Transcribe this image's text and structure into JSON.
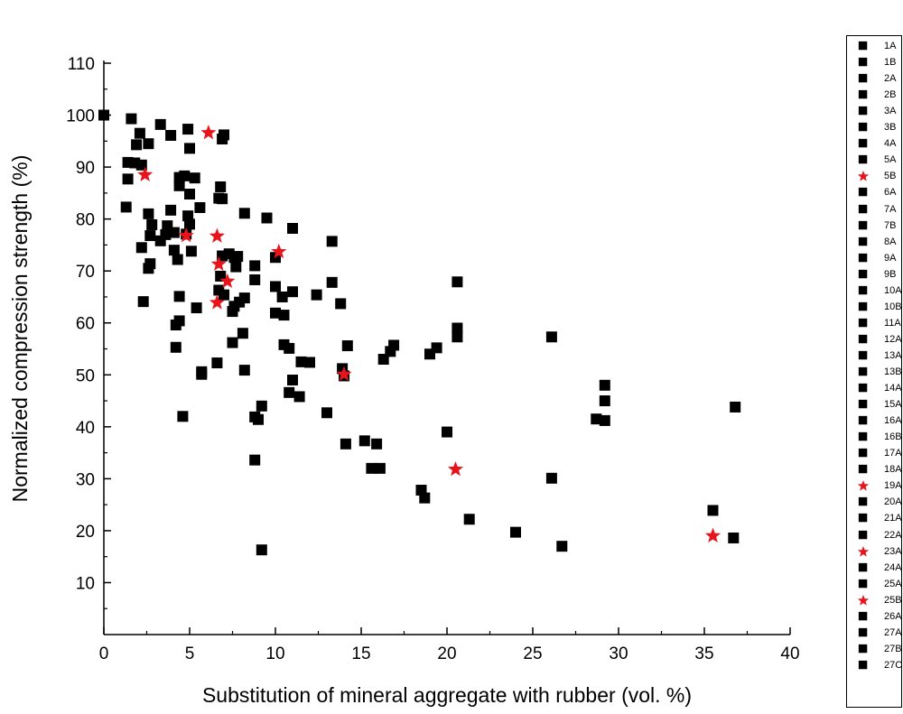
{
  "chart_data": {
    "type": "scatter",
    "title": "",
    "xlabel": "Substitution of mineral aggregate with rubber (vol. %)",
    "ylabel": "Normalized compression strength (%)",
    "xlim": [
      0,
      40
    ],
    "ylim": [
      0,
      110
    ],
    "xticks": [
      0,
      5,
      10,
      15,
      20,
      25,
      30,
      35,
      40
    ],
    "yticks": [
      10,
      20,
      30,
      40,
      50,
      60,
      70,
      80,
      90,
      100,
      110
    ],
    "xtick_labels": [
      "0",
      "5",
      "10",
      "15",
      "20",
      "25",
      "30",
      "35",
      "40"
    ],
    "ytick_labels": [
      "10",
      "20",
      "30",
      "40",
      "50",
      "60",
      "70",
      "80",
      "90",
      "100",
      "110"
    ],
    "grid": false,
    "legend_position": "right",
    "colors": {
      "square": "#000000",
      "star": "#e8141b"
    },
    "series": [
      {
        "marker": "square",
        "points": [
          [
            0.0,
            100
          ],
          [
            1.6,
            99.3
          ],
          [
            3.3,
            98.2
          ],
          [
            4.9,
            97.3
          ],
          [
            2.1,
            96.5
          ],
          [
            3.9,
            96.1
          ],
          [
            7.0,
            96.2
          ],
          [
            6.9,
            95.4
          ],
          [
            2.6,
            94.5
          ],
          [
            1.9,
            94.3
          ],
          [
            5.0,
            93.6
          ],
          [
            1.4,
            90.9
          ],
          [
            1.8,
            90.8
          ],
          [
            2.2,
            90.4
          ],
          [
            4.7,
            88.3
          ],
          [
            5.3,
            87.9
          ],
          [
            4.4,
            88.0
          ],
          [
            1.4,
            87.7
          ],
          [
            4.4,
            86.4
          ],
          [
            6.8,
            86.2
          ],
          [
            5.0,
            84.8
          ],
          [
            6.7,
            84.0
          ],
          [
            6.9,
            83.9
          ],
          [
            1.3,
            82.3
          ],
          [
            5.6,
            82.2
          ],
          [
            3.9,
            81.7
          ],
          [
            8.2,
            81.1
          ],
          [
            2.6,
            81.0
          ],
          [
            4.9,
            80.6
          ],
          [
            9.5,
            80.2
          ],
          [
            2.8,
            78.9
          ],
          [
            3.7,
            78.7
          ],
          [
            5.0,
            79.0
          ],
          [
            11.0,
            78.2
          ],
          [
            4.1,
            77.4
          ],
          [
            4.8,
            77.1
          ],
          [
            3.6,
            77.0
          ],
          [
            2.7,
            76.8
          ],
          [
            3.3,
            75.8
          ],
          [
            13.3,
            75.7
          ],
          [
            2.2,
            74.5
          ],
          [
            4.1,
            74.0
          ],
          [
            5.1,
            73.8
          ],
          [
            7.3,
            73.3
          ],
          [
            6.9,
            72.9
          ],
          [
            7.8,
            72.8
          ],
          [
            7.6,
            72.6
          ],
          [
            4.3,
            72.2
          ],
          [
            10.0,
            72.6
          ],
          [
            2.7,
            71.4
          ],
          [
            2.6,
            70.5
          ],
          [
            7.7,
            70.8
          ],
          [
            8.8,
            71.0
          ],
          [
            6.8,
            69.0
          ],
          [
            8.8,
            68.3
          ],
          [
            13.3,
            67.8
          ],
          [
            20.6,
            67.9
          ],
          [
            6.7,
            66.3
          ],
          [
            10.0,
            67.0
          ],
          [
            11.0,
            66.0
          ],
          [
            10.4,
            65.0
          ],
          [
            12.4,
            65.4
          ],
          [
            7.0,
            65.4
          ],
          [
            4.4,
            65.1
          ],
          [
            8.2,
            64.8
          ],
          [
            2.3,
            64.1
          ],
          [
            7.9,
            64.0
          ],
          [
            13.8,
            63.7
          ],
          [
            7.6,
            63.2
          ],
          [
            5.4,
            62.9
          ],
          [
            7.5,
            62.2
          ],
          [
            10.0,
            61.9
          ],
          [
            10.5,
            61.5
          ],
          [
            4.4,
            60.4
          ],
          [
            4.2,
            59.6
          ],
          [
            8.1,
            58.0
          ],
          [
            20.6,
            59.0
          ],
          [
            20.6,
            57.3
          ],
          [
            26.1,
            57.3
          ],
          [
            7.5,
            56.2
          ],
          [
            10.5,
            55.8
          ],
          [
            14.2,
            55.6
          ],
          [
            16.9,
            55.7
          ],
          [
            4.2,
            55.3
          ],
          [
            10.8,
            55.1
          ],
          [
            19.4,
            55.2
          ],
          [
            16.7,
            54.5
          ],
          [
            19.0,
            54.0
          ],
          [
            16.3,
            53.0
          ],
          [
            11.5,
            52.5
          ],
          [
            12.0,
            52.4
          ],
          [
            6.6,
            52.3
          ],
          [
            13.9,
            51.2
          ],
          [
            8.2,
            50.9
          ],
          [
            5.7,
            50.6
          ],
          [
            5.7,
            50.1
          ],
          [
            14.0,
            49.8
          ],
          [
            11.0,
            49.0
          ],
          [
            29.2,
            48.0
          ],
          [
            10.8,
            46.6
          ],
          [
            11.4,
            45.8
          ],
          [
            29.2,
            45.0
          ],
          [
            9.2,
            44.0
          ],
          [
            36.8,
            43.8
          ],
          [
            13.0,
            42.7
          ],
          [
            8.8,
            41.9
          ],
          [
            4.6,
            42.0
          ],
          [
            9.0,
            41.4
          ],
          [
            28.7,
            41.5
          ],
          [
            29.2,
            41.2
          ],
          [
            20.0,
            39.0
          ],
          [
            15.2,
            37.3
          ],
          [
            15.9,
            36.7
          ],
          [
            14.1,
            36.7
          ],
          [
            8.8,
            33.6
          ],
          [
            15.6,
            32.0
          ],
          [
            16.1,
            32.0
          ],
          [
            26.1,
            30.1
          ],
          [
            18.5,
            27.8
          ],
          [
            18.7,
            26.3
          ],
          [
            35.5,
            23.9
          ],
          [
            21.3,
            22.2
          ],
          [
            24.0,
            19.7
          ],
          [
            36.7,
            18.6
          ],
          [
            26.7,
            17.0
          ],
          [
            9.2,
            16.3
          ]
        ]
      },
      {
        "marker": "star",
        "points": [
          [
            6.1,
            96.6
          ],
          [
            2.4,
            88.5
          ],
          [
            4.8,
            76.8
          ],
          [
            6.6,
            76.7
          ],
          [
            10.2,
            73.7
          ],
          [
            6.7,
            71.3
          ],
          [
            7.2,
            68.0
          ],
          [
            6.6,
            63.9
          ],
          [
            14.0,
            50.1
          ],
          [
            20.5,
            31.8
          ],
          [
            35.5,
            19.0
          ]
        ]
      }
    ]
  },
  "legend": {
    "items": [
      {
        "label": "1A",
        "marker": "square"
      },
      {
        "label": "1B",
        "marker": "square"
      },
      {
        "label": "2A",
        "marker": "square"
      },
      {
        "label": "2B",
        "marker": "square"
      },
      {
        "label": "3A",
        "marker": "square"
      },
      {
        "label": "3B",
        "marker": "square"
      },
      {
        "label": "4A",
        "marker": "square"
      },
      {
        "label": "5A",
        "marker": "square"
      },
      {
        "label": "5B",
        "marker": "star"
      },
      {
        "label": "6A",
        "marker": "square"
      },
      {
        "label": "7A",
        "marker": "square"
      },
      {
        "label": "7B",
        "marker": "square"
      },
      {
        "label": "8A",
        "marker": "square"
      },
      {
        "label": "9A",
        "marker": "square"
      },
      {
        "label": "9B",
        "marker": "square"
      },
      {
        "label": "10A",
        "marker": "square"
      },
      {
        "label": "10B",
        "marker": "square"
      },
      {
        "label": "11A",
        "marker": "square"
      },
      {
        "label": "12A",
        "marker": "square"
      },
      {
        "label": "13A",
        "marker": "square"
      },
      {
        "label": "13B",
        "marker": "square"
      },
      {
        "label": "14A",
        "marker": "square"
      },
      {
        "label": "15A",
        "marker": "square"
      },
      {
        "label": "16A",
        "marker": "square"
      },
      {
        "label": "16B",
        "marker": "square"
      },
      {
        "label": "17A",
        "marker": "square"
      },
      {
        "label": "18A",
        "marker": "square"
      },
      {
        "label": "19A",
        "marker": "star"
      },
      {
        "label": "20A",
        "marker": "square"
      },
      {
        "label": "21A",
        "marker": "square"
      },
      {
        "label": "22A",
        "marker": "square"
      },
      {
        "label": "23A",
        "marker": "star"
      },
      {
        "label": "24A",
        "marker": "square"
      },
      {
        "label": "25A",
        "marker": "square"
      },
      {
        "label": "25B",
        "marker": "star"
      },
      {
        "label": "26A",
        "marker": "square"
      },
      {
        "label": "27A",
        "marker": "square"
      },
      {
        "label": "27B",
        "marker": "square"
      },
      {
        "label": "27C",
        "marker": "square"
      }
    ]
  }
}
